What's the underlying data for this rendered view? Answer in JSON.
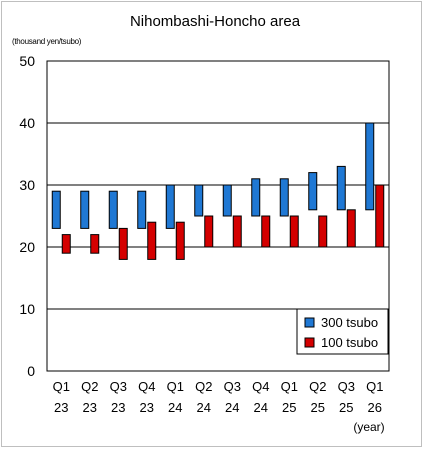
{
  "chart_data": {
    "type": "bar",
    "subtype": "floating-range",
    "title": "Nihombashi-Honcho area",
    "ylabel": "(thousand yen/tsubo)",
    "xlabel": "(year)",
    "ylim": [
      0,
      50
    ],
    "yticks": [
      0,
      10,
      20,
      30,
      40,
      50
    ],
    "grid": true,
    "legend_position": "bottom-right",
    "categories": [
      {
        "quarter": "Q1",
        "year": "23"
      },
      {
        "quarter": "Q2",
        "year": "23"
      },
      {
        "quarter": "Q3",
        "year": "23"
      },
      {
        "quarter": "Q4",
        "year": "23"
      },
      {
        "quarter": "Q1",
        "year": "24"
      },
      {
        "quarter": "Q2",
        "year": "24"
      },
      {
        "quarter": "Q3",
        "year": "24"
      },
      {
        "quarter": "Q4",
        "year": "24"
      },
      {
        "quarter": "Q1",
        "year": "25"
      },
      {
        "quarter": "Q2",
        "year": "25"
      },
      {
        "quarter": "Q3",
        "year": "25"
      },
      {
        "quarter": "Q1",
        "year": "26"
      }
    ],
    "series": [
      {
        "name": "300 tsubo",
        "color": "#1f78d4",
        "ranges": [
          [
            23,
            29
          ],
          [
            23,
            29
          ],
          [
            23,
            29
          ],
          [
            23,
            29
          ],
          [
            23,
            30
          ],
          [
            25,
            30
          ],
          [
            25,
            30
          ],
          [
            25,
            31
          ],
          [
            25,
            31
          ],
          [
            26,
            32
          ],
          [
            26,
            33
          ],
          [
            26,
            40
          ]
        ]
      },
      {
        "name": "100 tsubo",
        "color": "#d40000",
        "ranges": [
          [
            19,
            22
          ],
          [
            19,
            22
          ],
          [
            18,
            23
          ],
          [
            18,
            24
          ],
          [
            18,
            24
          ],
          [
            20,
            25
          ],
          [
            20,
            25
          ],
          [
            20,
            25
          ],
          [
            20,
            25
          ],
          [
            20,
            25
          ],
          [
            20,
            26
          ],
          [
            20,
            30
          ]
        ]
      }
    ]
  }
}
